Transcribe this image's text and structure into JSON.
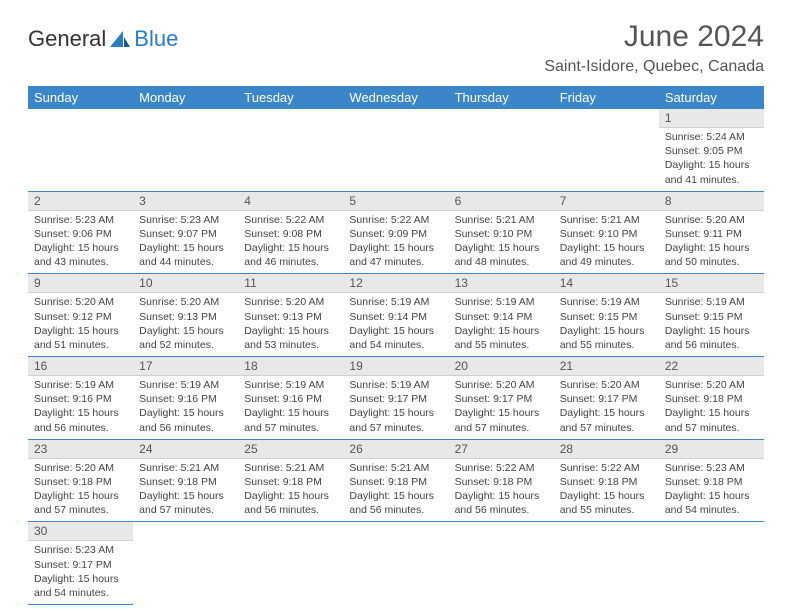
{
  "logo": {
    "text1": "General",
    "text2": "Blue"
  },
  "title": "June 2024",
  "location": "Saint-Isidore, Quebec, Canada",
  "colors": {
    "header_bg": "#3a86c8",
    "header_fg": "#ffffff",
    "daynum_bg": "#e8e8e8",
    "row_border": "#3a86c8",
    "text": "#444444"
  },
  "weekdays": [
    "Sunday",
    "Monday",
    "Tuesday",
    "Wednesday",
    "Thursday",
    "Friday",
    "Saturday"
  ],
  "weeks": [
    [
      null,
      null,
      null,
      null,
      null,
      null,
      {
        "n": "1",
        "sr": "Sunrise: 5:24 AM",
        "ss": "Sunset: 9:05 PM",
        "dl": "Daylight: 15 hours and 41 minutes."
      }
    ],
    [
      {
        "n": "2",
        "sr": "Sunrise: 5:23 AM",
        "ss": "Sunset: 9:06 PM",
        "dl": "Daylight: 15 hours and 43 minutes."
      },
      {
        "n": "3",
        "sr": "Sunrise: 5:23 AM",
        "ss": "Sunset: 9:07 PM",
        "dl": "Daylight: 15 hours and 44 minutes."
      },
      {
        "n": "4",
        "sr": "Sunrise: 5:22 AM",
        "ss": "Sunset: 9:08 PM",
        "dl": "Daylight: 15 hours and 46 minutes."
      },
      {
        "n": "5",
        "sr": "Sunrise: 5:22 AM",
        "ss": "Sunset: 9:09 PM",
        "dl": "Daylight: 15 hours and 47 minutes."
      },
      {
        "n": "6",
        "sr": "Sunrise: 5:21 AM",
        "ss": "Sunset: 9:10 PM",
        "dl": "Daylight: 15 hours and 48 minutes."
      },
      {
        "n": "7",
        "sr": "Sunrise: 5:21 AM",
        "ss": "Sunset: 9:10 PM",
        "dl": "Daylight: 15 hours and 49 minutes."
      },
      {
        "n": "8",
        "sr": "Sunrise: 5:20 AM",
        "ss": "Sunset: 9:11 PM",
        "dl": "Daylight: 15 hours and 50 minutes."
      }
    ],
    [
      {
        "n": "9",
        "sr": "Sunrise: 5:20 AM",
        "ss": "Sunset: 9:12 PM",
        "dl": "Daylight: 15 hours and 51 minutes."
      },
      {
        "n": "10",
        "sr": "Sunrise: 5:20 AM",
        "ss": "Sunset: 9:13 PM",
        "dl": "Daylight: 15 hours and 52 minutes."
      },
      {
        "n": "11",
        "sr": "Sunrise: 5:20 AM",
        "ss": "Sunset: 9:13 PM",
        "dl": "Daylight: 15 hours and 53 minutes."
      },
      {
        "n": "12",
        "sr": "Sunrise: 5:19 AM",
        "ss": "Sunset: 9:14 PM",
        "dl": "Daylight: 15 hours and 54 minutes."
      },
      {
        "n": "13",
        "sr": "Sunrise: 5:19 AM",
        "ss": "Sunset: 9:14 PM",
        "dl": "Daylight: 15 hours and 55 minutes."
      },
      {
        "n": "14",
        "sr": "Sunrise: 5:19 AM",
        "ss": "Sunset: 9:15 PM",
        "dl": "Daylight: 15 hours and 55 minutes."
      },
      {
        "n": "15",
        "sr": "Sunrise: 5:19 AM",
        "ss": "Sunset: 9:15 PM",
        "dl": "Daylight: 15 hours and 56 minutes."
      }
    ],
    [
      {
        "n": "16",
        "sr": "Sunrise: 5:19 AM",
        "ss": "Sunset: 9:16 PM",
        "dl": "Daylight: 15 hours and 56 minutes."
      },
      {
        "n": "17",
        "sr": "Sunrise: 5:19 AM",
        "ss": "Sunset: 9:16 PM",
        "dl": "Daylight: 15 hours and 56 minutes."
      },
      {
        "n": "18",
        "sr": "Sunrise: 5:19 AM",
        "ss": "Sunset: 9:16 PM",
        "dl": "Daylight: 15 hours and 57 minutes."
      },
      {
        "n": "19",
        "sr": "Sunrise: 5:19 AM",
        "ss": "Sunset: 9:17 PM",
        "dl": "Daylight: 15 hours and 57 minutes."
      },
      {
        "n": "20",
        "sr": "Sunrise: 5:20 AM",
        "ss": "Sunset: 9:17 PM",
        "dl": "Daylight: 15 hours and 57 minutes."
      },
      {
        "n": "21",
        "sr": "Sunrise: 5:20 AM",
        "ss": "Sunset: 9:17 PM",
        "dl": "Daylight: 15 hours and 57 minutes."
      },
      {
        "n": "22",
        "sr": "Sunrise: 5:20 AM",
        "ss": "Sunset: 9:18 PM",
        "dl": "Daylight: 15 hours and 57 minutes."
      }
    ],
    [
      {
        "n": "23",
        "sr": "Sunrise: 5:20 AM",
        "ss": "Sunset: 9:18 PM",
        "dl": "Daylight: 15 hours and 57 minutes."
      },
      {
        "n": "24",
        "sr": "Sunrise: 5:21 AM",
        "ss": "Sunset: 9:18 PM",
        "dl": "Daylight: 15 hours and 57 minutes."
      },
      {
        "n": "25",
        "sr": "Sunrise: 5:21 AM",
        "ss": "Sunset: 9:18 PM",
        "dl": "Daylight: 15 hours and 56 minutes."
      },
      {
        "n": "26",
        "sr": "Sunrise: 5:21 AM",
        "ss": "Sunset: 9:18 PM",
        "dl": "Daylight: 15 hours and 56 minutes."
      },
      {
        "n": "27",
        "sr": "Sunrise: 5:22 AM",
        "ss": "Sunset: 9:18 PM",
        "dl": "Daylight: 15 hours and 56 minutes."
      },
      {
        "n": "28",
        "sr": "Sunrise: 5:22 AM",
        "ss": "Sunset: 9:18 PM",
        "dl": "Daylight: 15 hours and 55 minutes."
      },
      {
        "n": "29",
        "sr": "Sunrise: 5:23 AM",
        "ss": "Sunset: 9:18 PM",
        "dl": "Daylight: 15 hours and 54 minutes."
      }
    ],
    [
      {
        "n": "30",
        "sr": "Sunrise: 5:23 AM",
        "ss": "Sunset: 9:17 PM",
        "dl": "Daylight: 15 hours and 54 minutes."
      },
      null,
      null,
      null,
      null,
      null,
      null
    ]
  ]
}
